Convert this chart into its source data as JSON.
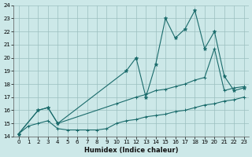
{
  "bg_color": "#cce8e8",
  "grid_color": "#9bbfbf",
  "line_color": "#1a6b6b",
  "xlabel": "Humidex (Indice chaleur)",
  "xlim": [
    -0.5,
    23.5
  ],
  "ylim": [
    14,
    24
  ],
  "yticks": [
    14,
    15,
    16,
    17,
    18,
    19,
    20,
    21,
    22,
    23,
    24
  ],
  "xticks": [
    0,
    1,
    2,
    3,
    4,
    5,
    6,
    7,
    8,
    9,
    10,
    11,
    12,
    13,
    14,
    15,
    16,
    17,
    18,
    19,
    20,
    21,
    22,
    23
  ],
  "line1_x": [
    0,
    1,
    2,
    3,
    4,
    5,
    6,
    7,
    8,
    9,
    10,
    11,
    12,
    13,
    14,
    15,
    16,
    17,
    18,
    19,
    20,
    21,
    22,
    23
  ],
  "line1_y": [
    14.2,
    14.8,
    15.0,
    15.2,
    14.6,
    14.5,
    14.5,
    14.5,
    14.5,
    14.6,
    15.0,
    15.2,
    15.3,
    15.5,
    15.6,
    15.7,
    15.9,
    16.0,
    16.2,
    16.4,
    16.5,
    16.7,
    16.8,
    17.0
  ],
  "line2_x": [
    0,
    2,
    3,
    4,
    10,
    12,
    13,
    14,
    15,
    16,
    17,
    18,
    19,
    20,
    21,
    22,
    23
  ],
  "line2_y": [
    14.2,
    16.0,
    16.2,
    15.0,
    16.5,
    17.0,
    17.2,
    17.5,
    17.6,
    17.8,
    18.0,
    18.3,
    18.5,
    20.7,
    17.5,
    17.7,
    17.8
  ],
  "line3_x": [
    0,
    2,
    3,
    4,
    11,
    12,
    13,
    14,
    15,
    16,
    17,
    18,
    19,
    20,
    21,
    22,
    23
  ],
  "line3_y": [
    14.2,
    16.0,
    16.2,
    15.0,
    19.0,
    20.0,
    17.0,
    19.5,
    23.0,
    21.5,
    22.2,
    23.6,
    20.7,
    22.0,
    18.6,
    17.5,
    17.7
  ]
}
